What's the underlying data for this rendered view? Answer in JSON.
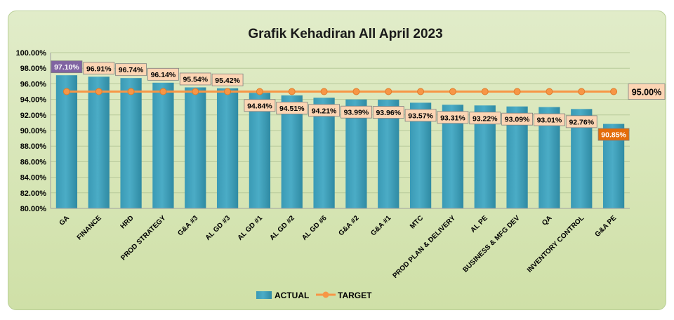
{
  "chart_data": {
    "type": "bar",
    "title": "Grafik Kehadiran All April 2023",
    "categories": [
      "GA",
      "FINANCE",
      "HRD",
      "PROD STRATEGY",
      "G&A #3",
      "AL GD #3",
      "AL GD #1",
      "AL GD #2",
      "AL GD #6",
      "G&A #2",
      "G&A #1",
      "MTC",
      "PROD PLAN & DELIVERY",
      "AL PE",
      "BUSINESS & MFG DEV",
      "QA",
      "INVENTORY CONTROL",
      "G&A PE"
    ],
    "series": [
      {
        "name": "ACTUAL",
        "type": "bar",
        "color": "#4bacc6",
        "values": [
          97.1,
          96.91,
          96.74,
          96.14,
          95.54,
          95.42,
          94.84,
          94.51,
          94.21,
          93.99,
          93.96,
          93.57,
          93.31,
          93.22,
          93.09,
          93.01,
          92.76,
          90.85
        ],
        "labels": [
          "97.10%",
          "96.91%",
          "96.74%",
          "96.14%",
          "95.54%",
          "95.42%",
          "94.84%",
          "94.51%",
          "94.21%",
          "93.99%",
          "93.96%",
          "93.57%",
          "93.31%",
          "93.22%",
          "93.09%",
          "93.01%",
          "92.76%",
          "90.85%"
        ]
      },
      {
        "name": "TARGET",
        "type": "line",
        "color": "#f79646",
        "values": [
          95,
          95,
          95,
          95,
          95,
          95,
          95,
          95,
          95,
          95,
          95,
          95,
          95,
          95,
          95,
          95,
          95,
          95
        ],
        "end_label": "95.00%"
      }
    ],
    "ylim": [
      80,
      100
    ],
    "yticks": [
      "80.00%",
      "82.00%",
      "84.00%",
      "86.00%",
      "88.00%",
      "90.00%",
      "92.00%",
      "94.00%",
      "96.00%",
      "98.00%",
      "100.00%"
    ],
    "grid": true,
    "legend": "bottom",
    "highlight": {
      "max_index": 0,
      "max_color": "#8064a2",
      "min_index": 17,
      "min_color": "#e46c0a",
      "label_fill": "#fcd5b4"
    }
  }
}
